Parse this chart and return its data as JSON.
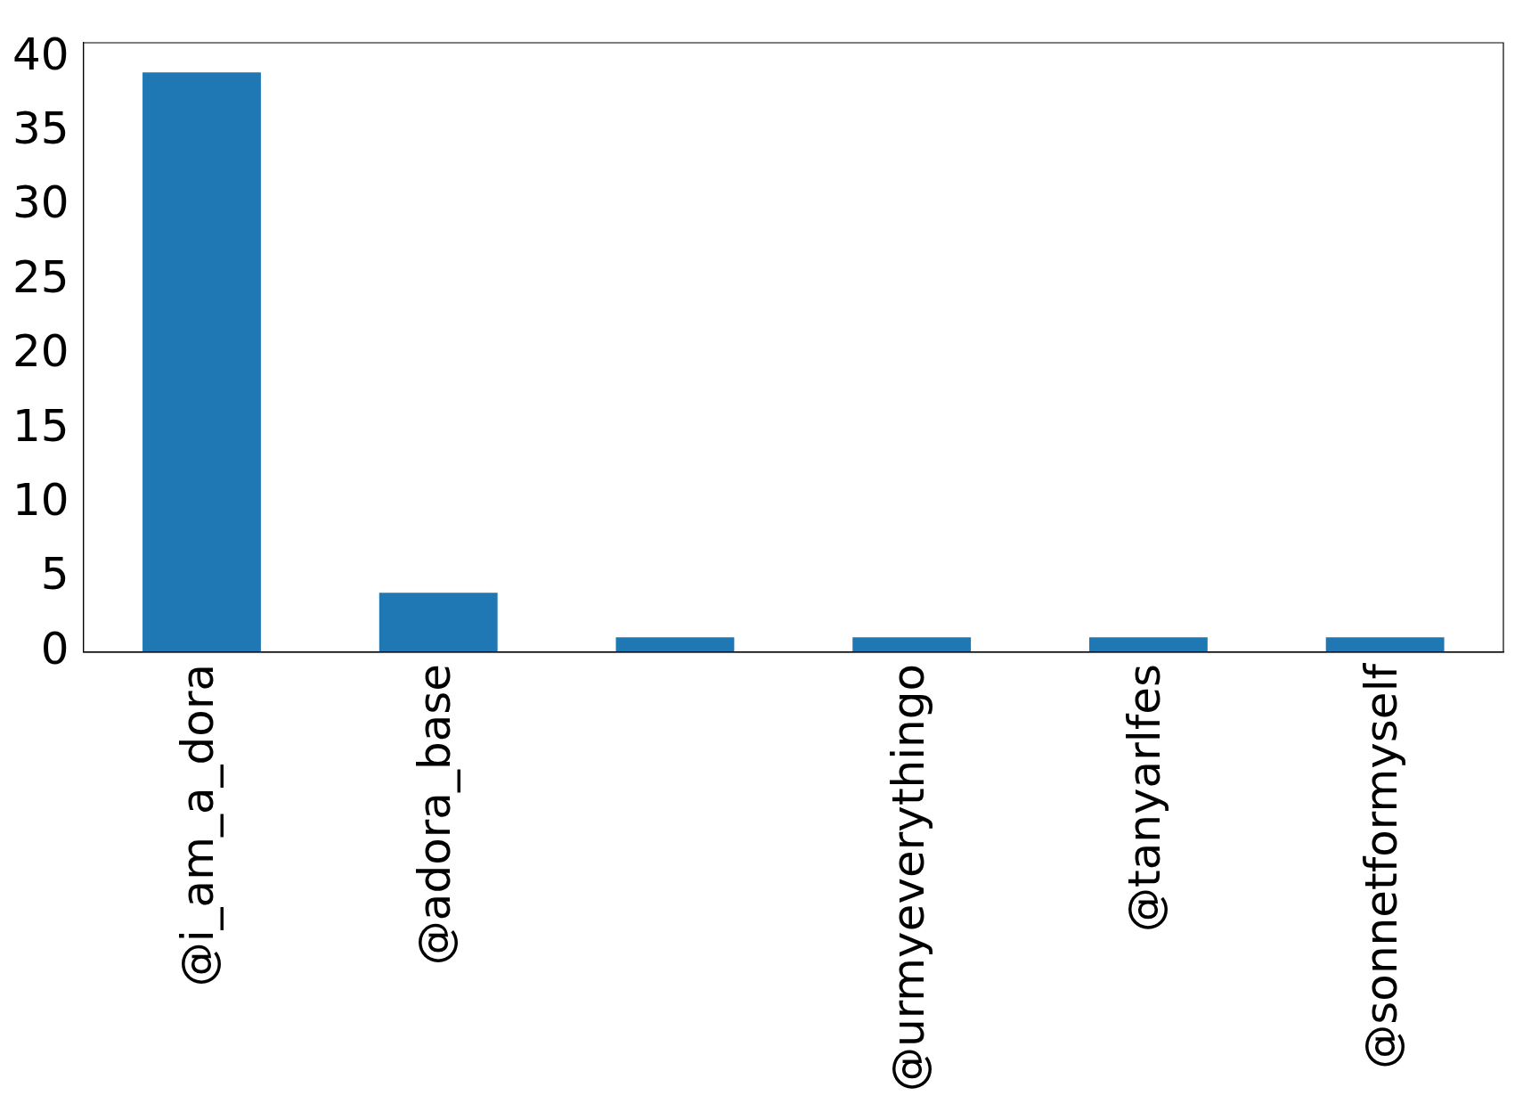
{
  "chart_data": {
    "type": "bar",
    "categories": [
      "@i_am_a_dora",
      "@adora_base",
      null,
      "@urmyeverythingo",
      "@tanyarlfes",
      "@sonnetformyself"
    ],
    "values": [
      39,
      4,
      1,
      1,
      1,
      1
    ],
    "color": "#1f77b4",
    "ylim": [
      0,
      41
    ],
    "yticks": [
      0,
      5,
      10,
      15,
      20,
      25,
      30,
      35,
      40
    ],
    "grid": false,
    "legend": false
  }
}
